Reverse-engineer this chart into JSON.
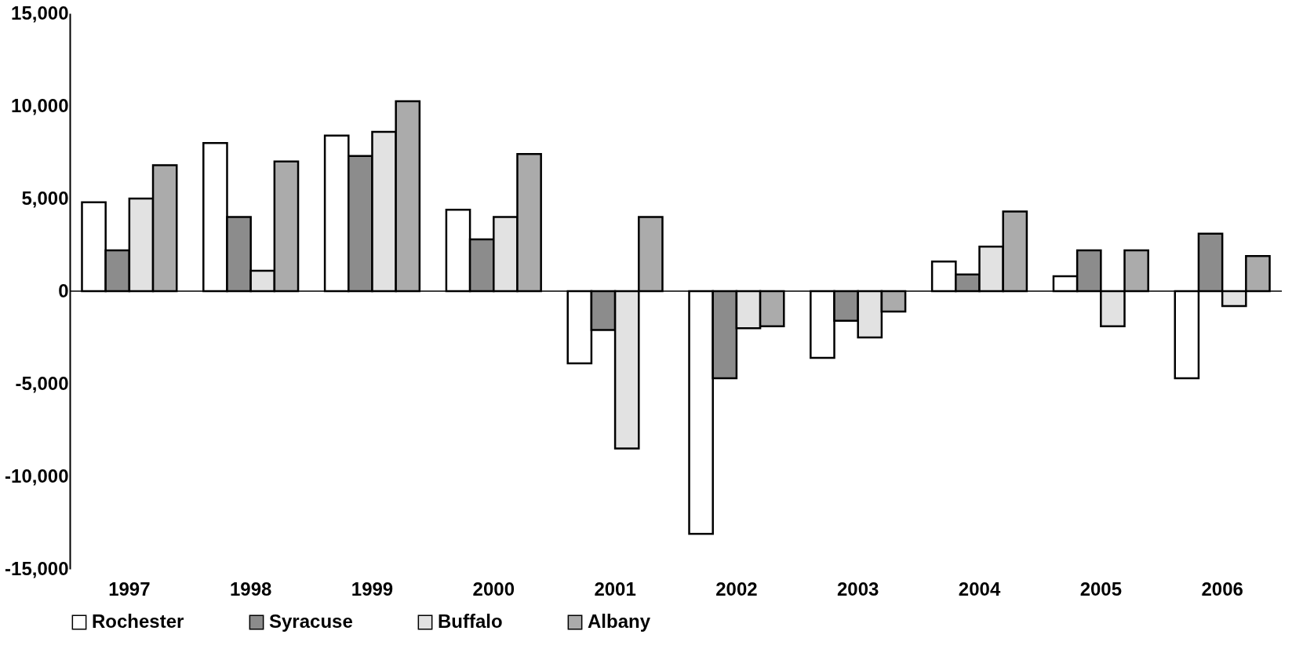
{
  "chart_data": {
    "type": "bar",
    "categories": [
      "1997",
      "1998",
      "1999",
      "2000",
      "2001",
      "2002",
      "2003",
      "2004",
      "2005",
      "2006"
    ],
    "series": [
      {
        "name": "Rochester",
        "color": "#ffffff",
        "values": [
          4800,
          8000,
          8400,
          4400,
          -3900,
          -13100,
          -3600,
          1600,
          800,
          -4700
        ]
      },
      {
        "name": "Syracuse",
        "color": "#8c8c8c",
        "values": [
          2200,
          4000,
          7300,
          2800,
          -2100,
          -4700,
          -1600,
          900,
          2200,
          3100
        ]
      },
      {
        "name": "Buffalo",
        "color": "#e2e2e2",
        "values": [
          5000,
          1100,
          8600,
          4000,
          -8500,
          -2000,
          -2500,
          2400,
          -1900,
          -800
        ]
      },
      {
        "name": "Albany",
        "color": "#ababab",
        "values": [
          6800,
          7000,
          10250,
          7400,
          4000,
          -1900,
          -1100,
          4300,
          2200,
          1900
        ]
      }
    ],
    "ylim": [
      -15000,
      15000
    ],
    "yticks": [
      {
        "value": -15000,
        "label": "-15,000"
      },
      {
        "value": -10000,
        "label": "-10,000"
      },
      {
        "value": -5000,
        "label": "-5,000"
      },
      {
        "value": 0,
        "label": "0"
      },
      {
        "value": 5000,
        "label": "5,000"
      },
      {
        "value": 10000,
        "label": "10,000"
      },
      {
        "value": 15000,
        "label": "15,000"
      }
    ],
    "ref_lines": [
      {
        "axis": "y",
        "value": 0,
        "color": "#000000"
      }
    ],
    "grid": false,
    "legend": "bottom"
  }
}
